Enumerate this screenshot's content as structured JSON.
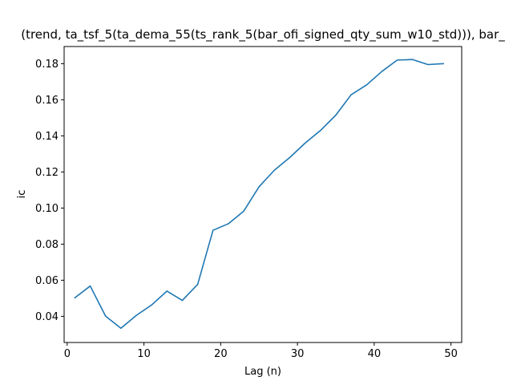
{
  "chart_data": {
    "type": "line",
    "title": "(trend, ta_tsf_5(ta_dema_55(ts_rank_5(bar_ofi_signed_qty_sum_w10_std))), bar_",
    "xlabel": "Lag (n)",
    "ylabel": "ic",
    "xlim": [
      -0.4,
      51.4
    ],
    "ylim": [
      0.0255,
      0.1895
    ],
    "xticks": [
      0,
      10,
      20,
      30,
      40,
      50
    ],
    "yticks": [
      0.04,
      0.06,
      0.08,
      0.1,
      0.12,
      0.14,
      0.16,
      0.18
    ],
    "ytick_labels": [
      "0.04",
      "0.06",
      "0.08",
      "0.10",
      "0.12",
      "0.14",
      "0.16",
      "0.18"
    ],
    "grid": false,
    "line_color": "#1f77b4",
    "x": [
      1,
      3,
      5,
      7,
      9,
      11,
      13,
      15,
      17,
      19,
      21,
      23,
      25,
      27,
      29,
      31,
      33,
      35,
      37,
      39,
      41,
      43,
      45,
      47,
      49
    ],
    "values": [
      0.0503,
      0.0568,
      0.0401,
      0.0334,
      0.0405,
      0.0463,
      0.054,
      0.0488,
      0.0577,
      0.0877,
      0.0913,
      0.0983,
      0.1118,
      0.121,
      0.128,
      0.136,
      0.143,
      0.1515,
      0.1628,
      0.1682,
      0.1757,
      0.182,
      0.1823,
      0.1795,
      0.18
    ]
  }
}
